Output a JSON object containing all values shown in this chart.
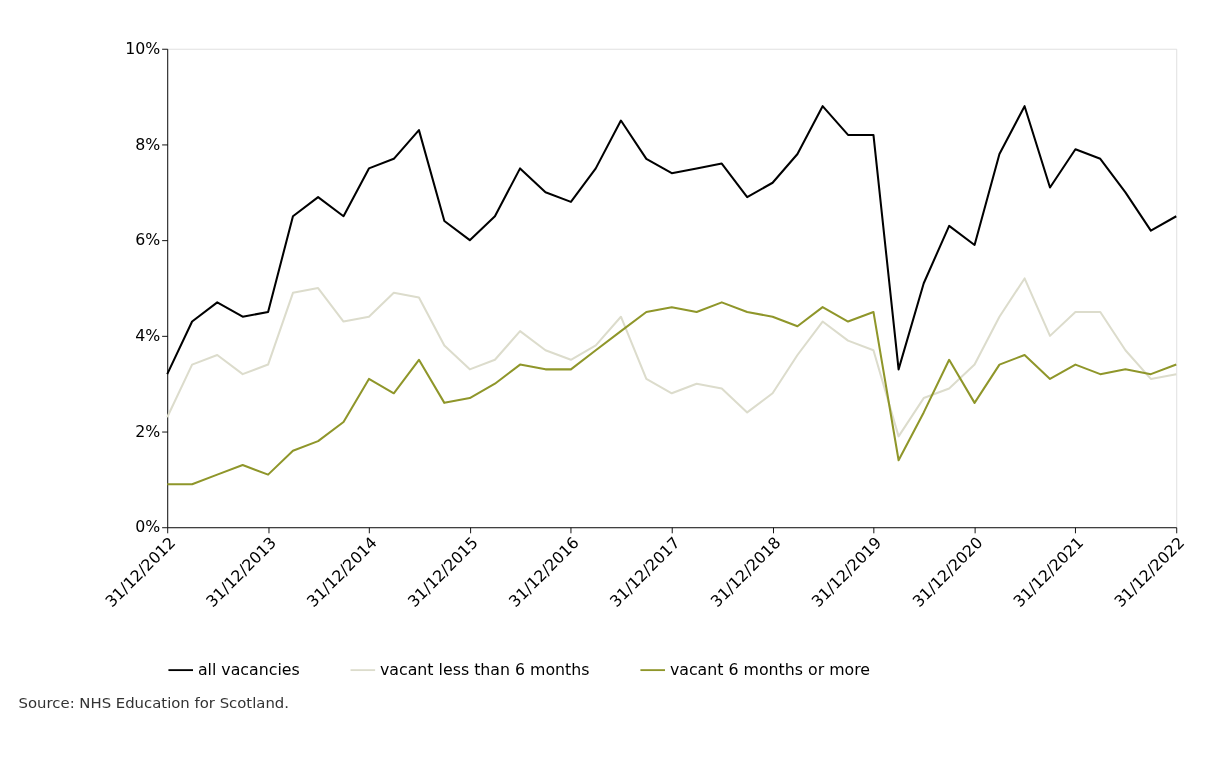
{
  "chart_data": {
    "type": "line",
    "x": [
      "2012-12-31",
      "2013-03-31",
      "2013-06-30",
      "2013-09-30",
      "2013-12-31",
      "2014-03-31",
      "2014-06-30",
      "2014-09-30",
      "2014-12-31",
      "2015-03-31",
      "2015-06-30",
      "2015-09-30",
      "2015-12-31",
      "2016-03-31",
      "2016-06-30",
      "2016-09-30",
      "2016-12-31",
      "2017-03-31",
      "2017-06-30",
      "2017-09-30",
      "2017-12-31",
      "2018-03-31",
      "2018-06-30",
      "2018-09-30",
      "2018-12-31",
      "2019-03-31",
      "2019-06-30",
      "2019-09-30",
      "2019-12-31",
      "2020-03-31",
      "2020-06-30",
      "2020-09-30",
      "2020-12-31",
      "2021-03-31",
      "2021-06-30",
      "2021-09-30",
      "2021-12-31",
      "2022-03-31",
      "2022-06-30",
      "2022-09-30",
      "2022-12-31"
    ],
    "series": [
      {
        "name": "all vacancies",
        "color": "#000000",
        "values": [
          3.2,
          4.3,
          4.7,
          4.4,
          4.5,
          6.5,
          6.9,
          6.5,
          7.5,
          7.7,
          8.3,
          6.4,
          6.0,
          6.5,
          7.5,
          7.0,
          6.8,
          7.5,
          8.5,
          7.7,
          7.4,
          7.5,
          7.6,
          6.9,
          7.2,
          7.8,
          8.8,
          8.2,
          8.2,
          3.3,
          5.1,
          6.3,
          5.9,
          7.8,
          8.8,
          7.1,
          7.9,
          7.7,
          7.0,
          6.2,
          6.5
        ]
      },
      {
        "name": "vacant less than 6 months",
        "color": "#dcdccc",
        "values": [
          2.3,
          3.4,
          3.6,
          3.2,
          3.4,
          4.9,
          5.0,
          4.3,
          4.4,
          4.9,
          4.8,
          3.8,
          3.3,
          3.5,
          4.1,
          3.7,
          3.5,
          3.8,
          4.4,
          3.1,
          2.8,
          3.0,
          2.9,
          2.4,
          2.8,
          3.6,
          4.3,
          3.9,
          3.7,
          1.9,
          2.7,
          2.9,
          3.4,
          4.4,
          5.2,
          4.0,
          4.5,
          4.5,
          3.7,
          3.1,
          3.2
        ]
      },
      {
        "name": "vacant 6 months or more",
        "color": "#8f962a",
        "values": [
          0.9,
          0.9,
          1.1,
          1.3,
          1.1,
          1.6,
          1.8,
          2.2,
          3.1,
          2.8,
          3.5,
          2.6,
          2.7,
          3.0,
          3.4,
          3.3,
          3.3,
          3.7,
          4.1,
          4.5,
          4.6,
          4.5,
          4.7,
          4.5,
          4.4,
          4.2,
          4.6,
          4.3,
          4.5,
          1.4,
          2.4,
          3.5,
          2.6,
          3.4,
          3.6,
          3.1,
          3.4,
          3.2,
          3.3,
          3.2,
          3.4
        ]
      }
    ],
    "xlim": [
      "2012-12-31",
      "2022-12-31"
    ],
    "xticks": [
      {
        "value": "2012-12-31",
        "label": "31/12/2012"
      },
      {
        "value": "2013-12-31",
        "label": "31/12/2013"
      },
      {
        "value": "2014-12-31",
        "label": "31/12/2014"
      },
      {
        "value": "2015-12-31",
        "label": "31/12/2015"
      },
      {
        "value": "2016-12-31",
        "label": "31/12/2016"
      },
      {
        "value": "2017-12-31",
        "label": "31/12/2017"
      },
      {
        "value": "2018-12-31",
        "label": "31/12/2018"
      },
      {
        "value": "2019-12-31",
        "label": "31/12/2019"
      },
      {
        "value": "2020-12-31",
        "label": "31/12/2020"
      },
      {
        "value": "2021-12-31",
        "label": "31/12/2021"
      },
      {
        "value": "2022-12-31",
        "label": "31/12/2022"
      }
    ],
    "ylim": [
      0,
      10
    ],
    "yticks": [
      {
        "value": 0,
        "label": "0%"
      },
      {
        "value": 2,
        "label": "2%"
      },
      {
        "value": 4,
        "label": "4%"
      },
      {
        "value": 6,
        "label": "6%"
      },
      {
        "value": 8,
        "label": "8%"
      },
      {
        "value": 10,
        "label": "10%"
      }
    ],
    "grid": false,
    "legend": "bottom",
    "line_style": "solid",
    "annotations": [
      "Source: NHS Education for Scotland."
    ]
  }
}
